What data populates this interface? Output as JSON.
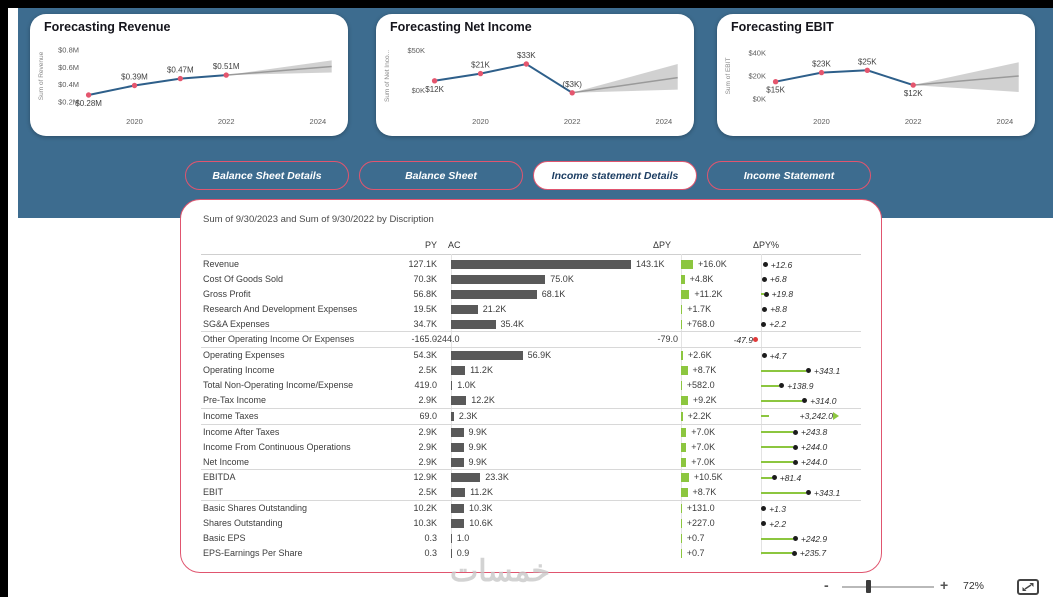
{
  "colors": {
    "band": "#3d6c8f",
    "accent_pink": "#e0556f",
    "line_blue": "#2e5f8a",
    "marker_red": "#e4566e",
    "bar_gray": "#595959",
    "bar_green": "#8cc63f",
    "forecast_gray": "#c6c6c6",
    "neg_dot_red": "#e03a3a"
  },
  "chart_data": [
    {
      "type": "line",
      "title": "Forecasting Revenue",
      "ylabel": "Sum of Revenue",
      "unit": "$M",
      "x": [
        2019,
        2020,
        2021,
        2022
      ],
      "values": [
        0.28,
        0.39,
        0.47,
        0.51
      ],
      "point_labels": [
        "$0.28M",
        "$0.39M",
        "$0.47M",
        "$0.51M"
      ],
      "label_pos": [
        "below",
        "above",
        "above",
        "above"
      ],
      "xlim": [
        2018.9,
        2024.35
      ],
      "ylim": [
        0.13,
        0.87
      ],
      "xticks": [
        {
          "v": 2020,
          "label": "2020"
        },
        {
          "v": 2022,
          "label": "2022"
        },
        {
          "v": 2024,
          "label": "2024"
        }
      ],
      "yticks": [
        {
          "v": 0.2,
          "label": "$0.2M"
        },
        {
          "v": 0.4,
          "label": "$0.4M"
        },
        {
          "v": 0.6,
          "label": "$0.6M"
        },
        {
          "v": 0.8,
          "label": "$0.8M"
        }
      ],
      "forecast": {
        "x": [
          2022,
          2024.3
        ],
        "mid": [
          0.51,
          0.61
        ],
        "upper": [
          0.51,
          0.68
        ],
        "lower": [
          0.51,
          0.54
        ]
      }
    },
    {
      "type": "line",
      "title": "Forecasting Net Income",
      "ylabel": "Sum of Net Inco...",
      "unit": "$K",
      "x": [
        2019,
        2020,
        2021,
        2022
      ],
      "values": [
        12,
        21,
        33,
        -3
      ],
      "point_labels": [
        "$12K",
        "$21K",
        "$33K",
        "($3K)"
      ],
      "label_pos": [
        "below",
        "above",
        "above",
        "above"
      ],
      "xlim": [
        2018.9,
        2024.35
      ],
      "ylim": [
        -22,
        58
      ],
      "xticks": [
        {
          "v": 2020,
          "label": "2020"
        },
        {
          "v": 2022,
          "label": "2022"
        },
        {
          "v": 2024,
          "label": "2024"
        }
      ],
      "yticks": [
        {
          "v": 0,
          "label": "$0K"
        },
        {
          "v": 50,
          "label": "$50K"
        }
      ],
      "forecast": {
        "x": [
          2022,
          2024.3
        ],
        "mid": [
          -3,
          16
        ],
        "upper": [
          -3,
          33
        ],
        "lower": [
          -3,
          1
        ]
      }
    },
    {
      "type": "line",
      "title": "Forecasting EBIT",
      "ylabel": "Sum of EBIT",
      "unit": "$K",
      "x": [
        2019,
        2020,
        2021,
        2022
      ],
      "values": [
        15,
        23,
        25,
        12
      ],
      "point_labels": [
        "$15K",
        "$23K",
        "$25K",
        "$12K"
      ],
      "label_pos": [
        "below",
        "above",
        "above",
        "below"
      ],
      "xlim": [
        2018.9,
        2024.35
      ],
      "ylim": [
        -8,
        48
      ],
      "xticks": [
        {
          "v": 2020,
          "label": "2020"
        },
        {
          "v": 2022,
          "label": "2022"
        },
        {
          "v": 2024,
          "label": "2024"
        }
      ],
      "yticks": [
        {
          "v": 0,
          "label": "$0K"
        },
        {
          "v": 20,
          "label": "$20K"
        },
        {
          "v": 40,
          "label": "$40K"
        }
      ],
      "forecast": {
        "x": [
          2022,
          2024.3
        ],
        "mid": [
          12,
          20
        ],
        "upper": [
          12,
          32
        ],
        "lower": [
          12,
          6
        ]
      }
    }
  ],
  "buttons": [
    {
      "label": "Balance Sheet Details",
      "selected": false
    },
    {
      "label": "Balance Sheet",
      "selected": false
    },
    {
      "label": "Income statement Details",
      "selected": true
    },
    {
      "label": "Income Statement",
      "selected": false
    }
  ],
  "table": {
    "title": "Sum of 9/30/2023 and Sum of 9/30/2022 by Discription",
    "headers": {
      "py": "PY",
      "ac": "AC",
      "dpy": "ΔPY",
      "dpypct": "ΔPY%"
    },
    "scales": {
      "ac_max": 143.1,
      "ac_maxpx": 180,
      "dpy_max": 16,
      "dpy_maxpx": 12,
      "pct_ref": 343.1,
      "pct_refpx": 45,
      "pct_cappx": 72
    },
    "rows": [
      {
        "name": "Revenue",
        "py": "127.1K",
        "ac": "143.1K",
        "ac_v": 143.1,
        "dpy": "+16.0K",
        "dpy_v": 16.0,
        "pct": "+12.6",
        "pct_v": 12.6,
        "sep": false
      },
      {
        "name": "Cost Of Goods Sold",
        "py": "70.3K",
        "ac": "75.0K",
        "ac_v": 75.0,
        "dpy": "+4.8K",
        "dpy_v": 4.8,
        "pct": "+6.8",
        "pct_v": 6.8,
        "sep": false
      },
      {
        "name": "Gross Profit",
        "py": "56.8K",
        "ac": "68.1K",
        "ac_v": 68.1,
        "dpy": "+11.2K",
        "dpy_v": 11.2,
        "pct": "+19.8",
        "pct_v": 19.8,
        "sep": false
      },
      {
        "name": "Research And Development Expenses",
        "py": "19.5K",
        "ac": "21.2K",
        "ac_v": 21.2,
        "dpy": "+1.7K",
        "dpy_v": 1.7,
        "pct": "+8.8",
        "pct_v": 8.8,
        "sep": false
      },
      {
        "name": "SG&A Expenses",
        "py": "34.7K",
        "ac": "35.4K",
        "ac_v": 35.4,
        "dpy": "+768.0",
        "dpy_v": 0.768,
        "pct": "+2.2",
        "pct_v": 2.2,
        "sep": true
      },
      {
        "name": "Other Operating Income Or Expenses",
        "py": "-165.0",
        "ac": "-244.0",
        "ac_v": -0.244,
        "dpy": "-79.0",
        "dpy_v": -0.079,
        "pct": "-47.9",
        "pct_v": -47.9,
        "sep": true
      },
      {
        "name": "Operating Expenses",
        "py": "54.3K",
        "ac": "56.9K",
        "ac_v": 56.9,
        "dpy": "+2.6K",
        "dpy_v": 2.6,
        "pct": "+4.7",
        "pct_v": 4.7,
        "sep": false
      },
      {
        "name": "Operating Income",
        "py": "2.5K",
        "ac": "11.2K",
        "ac_v": 11.2,
        "dpy": "+8.7K",
        "dpy_v": 8.7,
        "pct": "+343.1",
        "pct_v": 343.1,
        "sep": false
      },
      {
        "name": "Total Non-Operating Income/Expense",
        "py": "419.0",
        "ac": "1.0K",
        "ac_v": 1.0,
        "dpy": "+582.0",
        "dpy_v": 0.582,
        "pct": "+138.9",
        "pct_v": 138.9,
        "sep": false
      },
      {
        "name": "Pre-Tax Income",
        "py": "2.9K",
        "ac": "12.2K",
        "ac_v": 12.2,
        "dpy": "+9.2K",
        "dpy_v": 9.2,
        "pct": "+314.0",
        "pct_v": 314.0,
        "sep": true
      },
      {
        "name": "Income Taxes",
        "py": "69.0",
        "ac": "2.3K",
        "ac_v": 2.3,
        "dpy": "+2.2K",
        "dpy_v": 2.2,
        "pct": "+3,242.0",
        "pct_v": 3242.0,
        "sep": true
      },
      {
        "name": "Income After Taxes",
        "py": "2.9K",
        "ac": "9.9K",
        "ac_v": 9.9,
        "dpy": "+7.0K",
        "dpy_v": 7.0,
        "pct": "+243.8",
        "pct_v": 243.8,
        "sep": false
      },
      {
        "name": "Income From Continuous Operations",
        "py": "2.9K",
        "ac": "9.9K",
        "ac_v": 9.9,
        "dpy": "+7.0K",
        "dpy_v": 7.0,
        "pct": "+244.0",
        "pct_v": 244.0,
        "sep": false
      },
      {
        "name": "Net Income",
        "py": "2.9K",
        "ac": "9.9K",
        "ac_v": 9.9,
        "dpy": "+7.0K",
        "dpy_v": 7.0,
        "pct": "+244.0",
        "pct_v": 244.0,
        "sep": true
      },
      {
        "name": "EBITDA",
        "py": "12.9K",
        "ac": "23.3K",
        "ac_v": 23.3,
        "dpy": "+10.5K",
        "dpy_v": 10.5,
        "pct": "+81.4",
        "pct_v": 81.4,
        "sep": false
      },
      {
        "name": "EBIT",
        "py": "2.5K",
        "ac": "11.2K",
        "ac_v": 11.2,
        "dpy": "+8.7K",
        "dpy_v": 8.7,
        "pct": "+343.1",
        "pct_v": 343.1,
        "sep": true
      },
      {
        "name": "Basic Shares Outstanding",
        "py": "10.2K",
        "ac": "10.3K",
        "ac_v": 10.3,
        "dpy": "+131.0",
        "dpy_v": 0.131,
        "pct": "+1.3",
        "pct_v": 1.3,
        "sep": false
      },
      {
        "name": "Shares Outstanding",
        "py": "10.3K",
        "ac": "10.6K",
        "ac_v": 10.6,
        "dpy": "+227.0",
        "dpy_v": 0.227,
        "pct": "+2.2",
        "pct_v": 2.2,
        "sep": false
      },
      {
        "name": "Basic EPS",
        "py": "0.3",
        "ac": "1.0",
        "ac_v": 0.001,
        "dpy": "+0.7",
        "dpy_v": 0.0007,
        "pct": "+242.9",
        "pct_v": 242.9,
        "sep": false
      },
      {
        "name": "EPS-Earnings Per Share",
        "py": "0.3",
        "ac": "0.9",
        "ac_v": 0.0009,
        "dpy": "+0.7",
        "dpy_v": 0.0007,
        "pct": "+235.7",
        "pct_v": 235.7,
        "sep": false
      }
    ]
  },
  "statusbar": {
    "minus_label": "-",
    "plus_label": "+",
    "zoom_level": "72%"
  },
  "watermark": "خمسات"
}
